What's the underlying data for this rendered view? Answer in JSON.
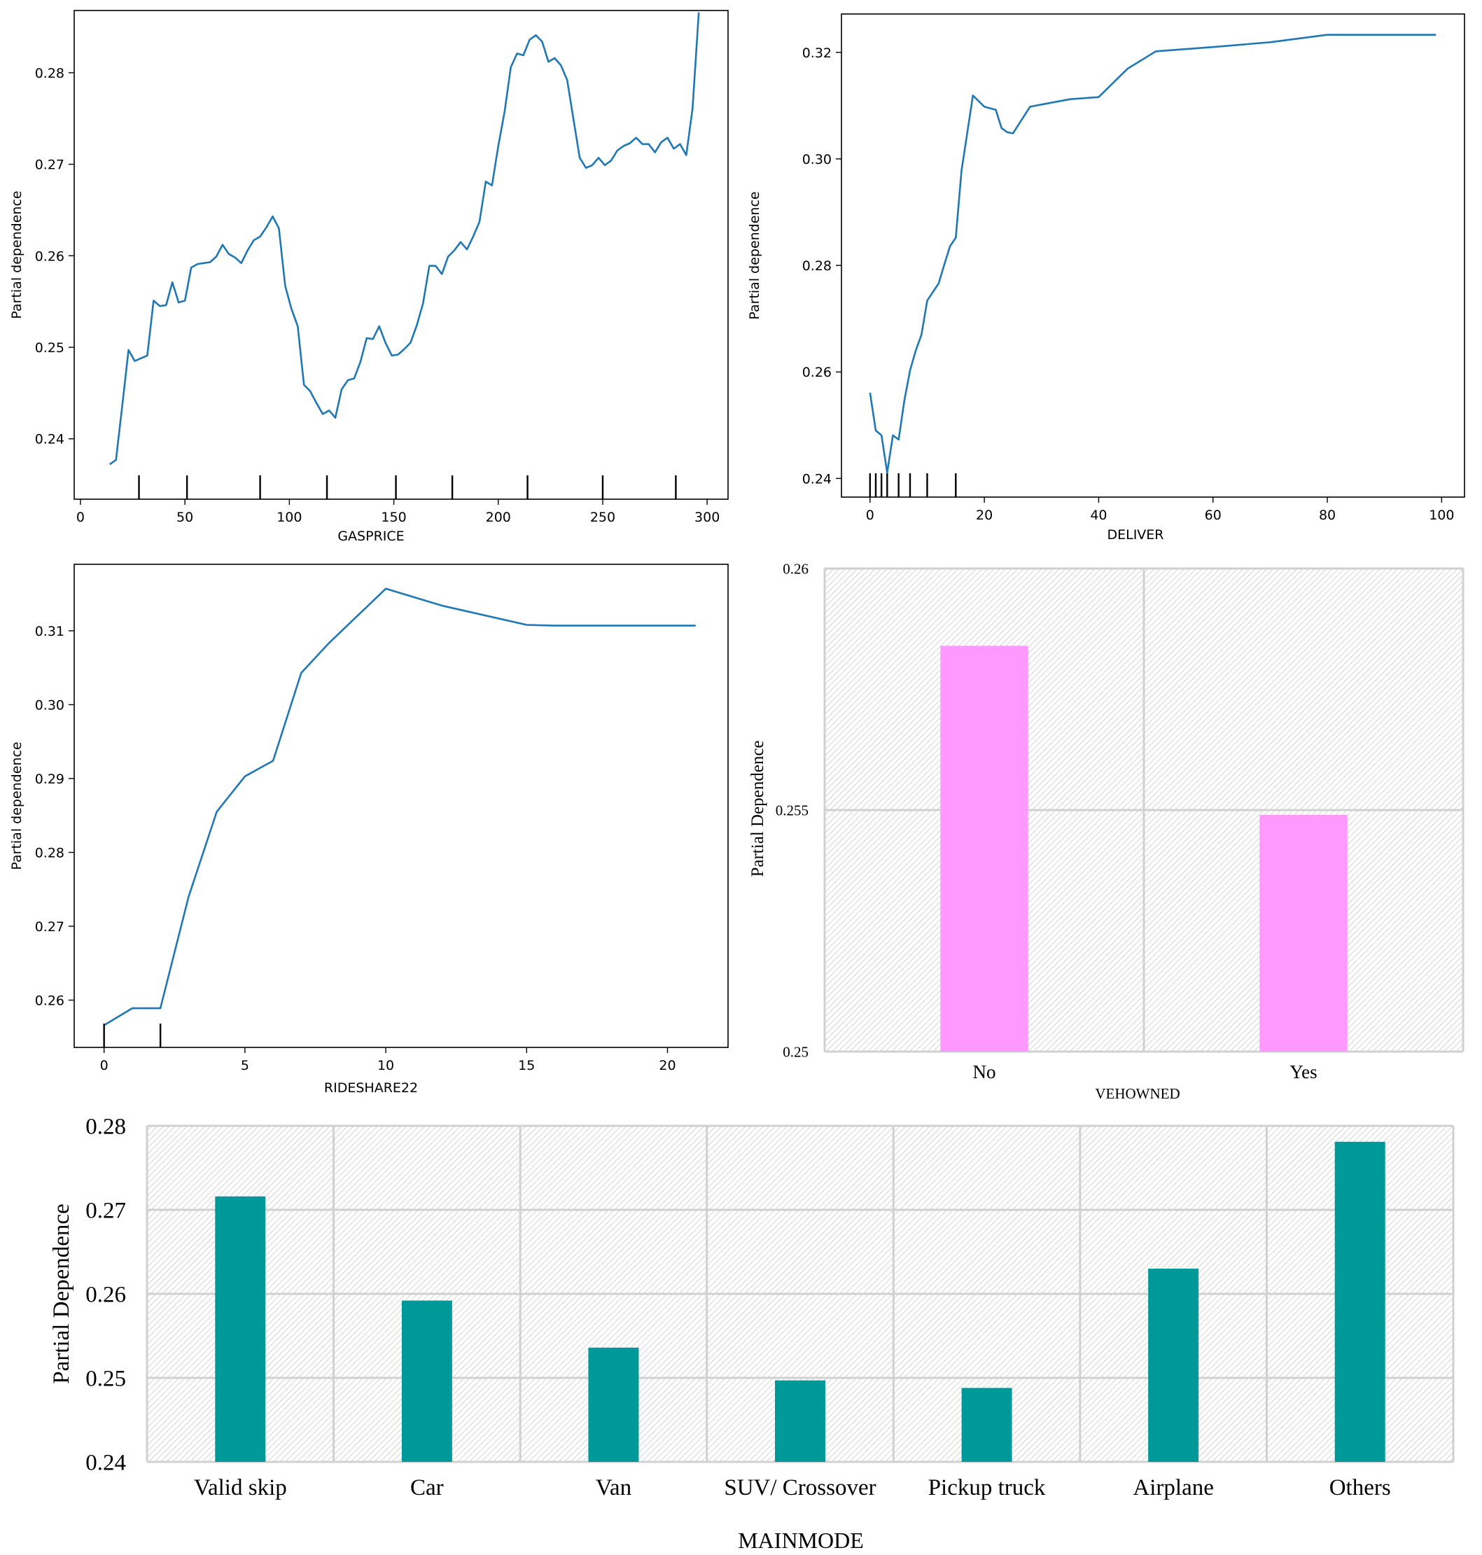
{
  "chart_data": [
    {
      "type": "line",
      "xlabel": "GASPRICE",
      "ylabel": "Partial dependence",
      "xlim": [
        -3,
        310
      ],
      "ylim": [
        0.2334,
        0.2868
      ],
      "xticks": [
        0,
        50,
        100,
        150,
        200,
        250,
        300
      ],
      "xtick_labels": [
        "0",
        "50",
        "100",
        "150",
        "200",
        "250",
        "300"
      ],
      "yticks": [
        0.24,
        0.25,
        0.26,
        0.27,
        0.28
      ],
      "ytick_labels": [
        "0.24",
        "0.25",
        "0.26",
        "0.27",
        "0.28"
      ],
      "line_color": "#1f77b4",
      "rug": [
        28,
        51,
        86,
        118,
        151,
        178,
        214,
        250,
        285
      ],
      "series": [
        {
          "x": [
            14,
            17,
            20,
            23,
            26,
            29,
            32,
            35,
            38,
            41,
            44,
            47,
            50,
            53,
            56,
            59,
            62,
            65,
            68,
            71,
            74,
            77,
            80,
            83,
            86,
            89,
            92,
            95,
            98,
            101,
            104,
            107,
            110,
            113,
            116,
            119,
            122,
            125,
            128,
            131,
            134,
            137,
            140,
            143,
            146,
            149,
            152,
            155,
            158,
            161,
            164,
            167,
            170,
            173,
            176,
            179,
            182,
            185,
            188,
            191,
            194,
            197,
            200,
            203,
            206,
            209,
            212,
            215,
            218,
            221,
            224,
            227,
            230,
            233,
            236,
            239,
            242,
            245,
            248,
            251,
            254,
            257,
            260,
            263,
            266,
            269,
            272,
            275,
            278,
            281,
            284,
            287,
            290,
            293,
            296
          ],
          "y": [
            0.2372,
            0.2377,
            0.2436,
            0.2497,
            0.2485,
            0.2488,
            0.2491,
            0.2551,
            0.2545,
            0.2546,
            0.2571,
            0.2549,
            0.2551,
            0.2587,
            0.2591,
            0.2592,
            0.2593,
            0.2599,
            0.2612,
            0.2602,
            0.2598,
            0.2592,
            0.2606,
            0.2617,
            0.2621,
            0.2631,
            0.2643,
            0.263,
            0.2567,
            0.2542,
            0.2523,
            0.2459,
            0.2452,
            0.2439,
            0.2427,
            0.2431,
            0.2423,
            0.2454,
            0.2464,
            0.2466,
            0.2484,
            0.251,
            0.2509,
            0.2523,
            0.2505,
            0.2491,
            0.2492,
            0.2498,
            0.2505,
            0.2524,
            0.2548,
            0.2589,
            0.2589,
            0.258,
            0.2599,
            0.2606,
            0.2615,
            0.2607,
            0.2621,
            0.2637,
            0.2681,
            0.2677,
            0.272,
            0.2757,
            0.2806,
            0.2821,
            0.2819,
            0.2836,
            0.2841,
            0.2834,
            0.2812,
            0.2816,
            0.2808,
            0.2792,
            0.2749,
            0.2707,
            0.2696,
            0.2699,
            0.2707,
            0.2699,
            0.2704,
            0.2715,
            0.272,
            0.2723,
            0.2729,
            0.2722,
            0.2722,
            0.2713,
            0.2724,
            0.2729,
            0.2717,
            0.2722,
            0.271,
            0.2761,
            0.2866
          ]
        }
      ]
    },
    {
      "type": "line",
      "xlabel": "DELIVER",
      "ylabel": "Partial dependence",
      "xlim": [
        -5,
        104
      ],
      "ylim": [
        0.2365,
        0.3272
      ],
      "xticks": [
        0,
        20,
        40,
        60,
        80,
        100
      ],
      "xtick_labels": [
        "0",
        "20",
        "40",
        "60",
        "80",
        "100"
      ],
      "yticks": [
        0.24,
        0.26,
        0.28,
        0.3,
        0.32
      ],
      "ytick_labels": [
        "0.24",
        "0.26",
        "0.28",
        "0.30",
        "0.32"
      ],
      "line_color": "#1f77b4",
      "rug": [
        0,
        1,
        2,
        3,
        5,
        7,
        10,
        15
      ],
      "series": [
        {
          "x": [
            0,
            1,
            2,
            3,
            4,
            5,
            6,
            7,
            8,
            9,
            10,
            12,
            13,
            14,
            15,
            16,
            18,
            20,
            22,
            23,
            24,
            25,
            28,
            30,
            35,
            40,
            45,
            50,
            60,
            70,
            80,
            90,
            99
          ],
          "y": [
            0.2561,
            0.249,
            0.2481,
            0.2411,
            0.2481,
            0.2473,
            0.2546,
            0.2603,
            0.264,
            0.267,
            0.2734,
            0.2766,
            0.2802,
            0.2836,
            0.2852,
            0.2978,
            0.3119,
            0.3098,
            0.3092,
            0.3058,
            0.305,
            0.3048,
            0.3098,
            0.3102,
            0.3112,
            0.3116,
            0.3169,
            0.3202,
            0.321,
            0.3219,
            0.3233,
            0.3233,
            0.3233
          ]
        }
      ]
    },
    {
      "type": "line",
      "xlabel": "RIDESHARE22",
      "ylabel": "Partial dependence",
      "xlim": [
        -1.06,
        22.15
      ],
      "ylim": [
        0.2536,
        0.319
      ],
      "xticks": [
        0,
        5,
        10,
        15,
        20
      ],
      "xtick_labels": [
        "0",
        "5",
        "10",
        "15",
        "20"
      ],
      "yticks": [
        0.26,
        0.27,
        0.28,
        0.29,
        0.3,
        0.31
      ],
      "ytick_labels": [
        "0.26",
        "0.27",
        "0.28",
        "0.29",
        "0.30",
        "0.31"
      ],
      "line_color": "#1f77b4",
      "rug": [
        0,
        2
      ],
      "series": [
        {
          "x": [
            0,
            1,
            2,
            3,
            4,
            5,
            6,
            7,
            8,
            10,
            12,
            15,
            16,
            18,
            21
          ],
          "y": [
            0.2566,
            0.2589,
            0.2589,
            0.274,
            0.2855,
            0.2903,
            0.2924,
            0.3043,
            0.3084,
            0.3157,
            0.3134,
            0.3108,
            0.3107,
            0.3107,
            0.3107
          ]
        }
      ]
    },
    {
      "type": "bar",
      "xlabel": "VEHOWNED",
      "ylabel": "Partial Dependence",
      "categories": [
        "No",
        "Yes"
      ],
      "values": [
        0.2584,
        0.2549
      ],
      "ylim": [
        0.25,
        0.26
      ],
      "yticks": [
        0.25,
        0.255,
        0.26
      ],
      "ytick_labels": [
        "0.25",
        "0.255",
        "0.26"
      ],
      "bar_color": "#ff99ff",
      "grid": true
    },
    {
      "type": "bar",
      "xlabel": "MAINMODE",
      "ylabel": "Partial Dependence",
      "categories": [
        "Valid skip",
        "Car",
        "Van",
        "SUV/ Crossover",
        "Pickup truck",
        "Airplane",
        "Others"
      ],
      "values": [
        0.2716,
        0.2592,
        0.2536,
        0.2497,
        0.2488,
        0.263,
        0.2781
      ],
      "ylim": [
        0.24,
        0.28
      ],
      "yticks": [
        0.24,
        0.25,
        0.26,
        0.27,
        0.28
      ],
      "ytick_labels": [
        "0.24",
        "0.25",
        "0.26",
        "0.27",
        "0.28"
      ],
      "bar_color": "#009999",
      "grid": true
    }
  ]
}
